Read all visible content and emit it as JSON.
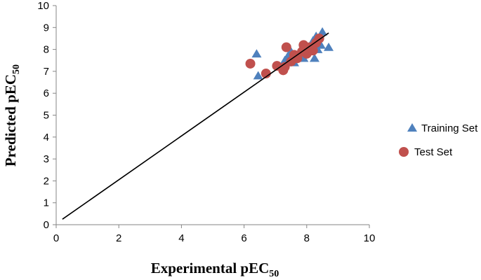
{
  "chart_data": {
    "type": "scatter",
    "title": "",
    "xlabel": "Experimental pEC",
    "xlabel_sub": "50",
    "ylabel": "Predicted pEC",
    "ylabel_sub": "50",
    "xlim": [
      0,
      10
    ],
    "ylim": [
      0,
      10
    ],
    "x_ticks": [
      0,
      2,
      4,
      6,
      8,
      10
    ],
    "y_ticks": [
      0,
      1,
      2,
      3,
      4,
      5,
      6,
      7,
      8,
      9,
      10
    ],
    "x_tick_labels": [
      "0",
      "2",
      "4",
      "6",
      "8",
      "10"
    ],
    "y_tick_labels": [
      "0",
      "1",
      "2",
      "3",
      "4",
      "5",
      "6",
      "7",
      "8",
      "9",
      "10"
    ],
    "grid": false,
    "legend_position": "right",
    "series": [
      {
        "name": "Training Set",
        "marker": "triangle",
        "color": "#4f81bd",
        "points": [
          {
            "x": 6.4,
            "y": 7.8
          },
          {
            "x": 6.45,
            "y": 6.8
          },
          {
            "x": 7.3,
            "y": 7.5
          },
          {
            "x": 7.4,
            "y": 7.7
          },
          {
            "x": 7.5,
            "y": 7.9
          },
          {
            "x": 7.6,
            "y": 7.4
          },
          {
            "x": 7.7,
            "y": 7.6
          },
          {
            "x": 7.8,
            "y": 7.8
          },
          {
            "x": 7.9,
            "y": 7.6
          },
          {
            "x": 8.0,
            "y": 8.0
          },
          {
            "x": 8.1,
            "y": 7.9
          },
          {
            "x": 8.2,
            "y": 8.4
          },
          {
            "x": 8.25,
            "y": 7.6
          },
          {
            "x": 8.3,
            "y": 8.6
          },
          {
            "x": 8.35,
            "y": 8.0
          },
          {
            "x": 8.45,
            "y": 8.2
          },
          {
            "x": 8.5,
            "y": 8.8
          },
          {
            "x": 8.7,
            "y": 8.1
          }
        ]
      },
      {
        "name": "Test Set",
        "marker": "circle",
        "color": "#c0504d",
        "points": [
          {
            "x": 6.2,
            "y": 7.35
          },
          {
            "x": 6.7,
            "y": 6.9
          },
          {
            "x": 7.05,
            "y": 7.25
          },
          {
            "x": 7.25,
            "y": 7.05
          },
          {
            "x": 7.3,
            "y": 7.2
          },
          {
            "x": 7.35,
            "y": 8.1
          },
          {
            "x": 7.5,
            "y": 7.45
          },
          {
            "x": 7.6,
            "y": 7.75
          },
          {
            "x": 7.7,
            "y": 7.6
          },
          {
            "x": 7.85,
            "y": 7.9
          },
          {
            "x": 7.9,
            "y": 8.2
          },
          {
            "x": 8.0,
            "y": 7.8
          },
          {
            "x": 8.1,
            "y": 8.1
          },
          {
            "x": 8.2,
            "y": 7.95
          },
          {
            "x": 8.3,
            "y": 8.3
          },
          {
            "x": 8.4,
            "y": 8.5
          }
        ]
      }
    ],
    "trendline": {
      "color": "#000000",
      "points": [
        {
          "x": 0.2,
          "y": 0.25
        },
        {
          "x": 8.7,
          "y": 8.75
        }
      ]
    }
  }
}
